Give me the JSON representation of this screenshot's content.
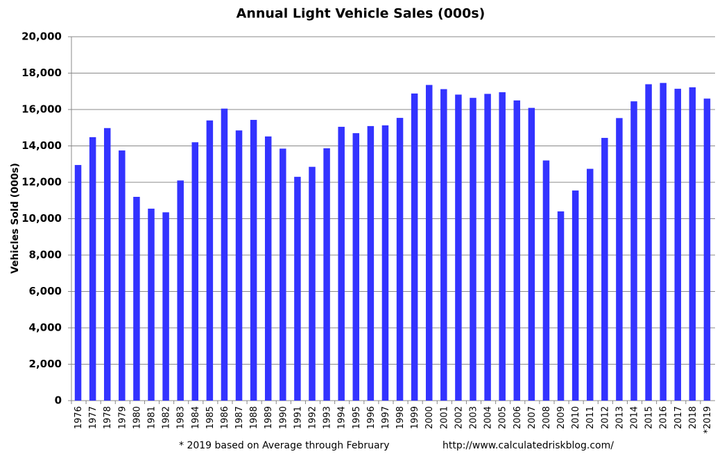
{
  "chart_data": {
    "type": "bar",
    "title": "Annual Light Vehicle Sales  (000s)",
    "y_label": "Vehicles Sold (000s)",
    "footnote": "* 2019 based on Average through February",
    "source": "http://www.calculatedriskblog.com/",
    "categories": [
      "1976",
      "1977",
      "1978",
      "1979",
      "1980",
      "1981",
      "1982",
      "1983",
      "1984",
      "1985",
      "1986",
      "1987",
      "1988",
      "1989",
      "1990",
      "1991",
      "1992",
      "1993",
      "1994",
      "1995",
      "1996",
      "1997",
      "1998",
      "1999",
      "2000",
      "2001",
      "2002",
      "2003",
      "2004",
      "2005",
      "2006",
      "2007",
      "2008",
      "2009",
      "2010",
      "2011",
      "2012",
      "2013",
      "2014",
      "2015",
      "2016",
      "2017",
      "2018",
      "*2019"
    ],
    "values": [
      12950,
      14480,
      14980,
      13750,
      11200,
      10550,
      10350,
      12100,
      14200,
      15400,
      16050,
      14850,
      15430,
      14520,
      13850,
      12300,
      12850,
      13870,
      15050,
      14700,
      15090,
      15130,
      15540,
      16880,
      17350,
      17120,
      16820,
      16640,
      16860,
      16950,
      16500,
      16090,
      13200,
      10400,
      11550,
      12740,
      14440,
      15530,
      16450,
      17390,
      17460,
      17140,
      17220,
      16600
    ],
    "color": "#3333ff",
    "ylim": [
      0,
      20000
    ],
    "yticks": [
      0,
      {
        "value": 2000,
        "label": "2,000"
      },
      {
        "value": 4000,
        "label": "4,000"
      },
      {
        "value": 6000,
        "label": "6,000"
      },
      {
        "value": 8000,
        "label": "8,000"
      },
      {
        "value": 10000,
        "label": "10,000"
      },
      {
        "value": 12000,
        "label": "12,000"
      },
      {
        "value": 14000,
        "label": "14,000"
      },
      {
        "value": 16000,
        "label": "16,000"
      },
      {
        "value": 18000,
        "label": "18,000"
      },
      {
        "value": 20000,
        "label": "20,000"
      }
    ],
    "grid": true
  }
}
